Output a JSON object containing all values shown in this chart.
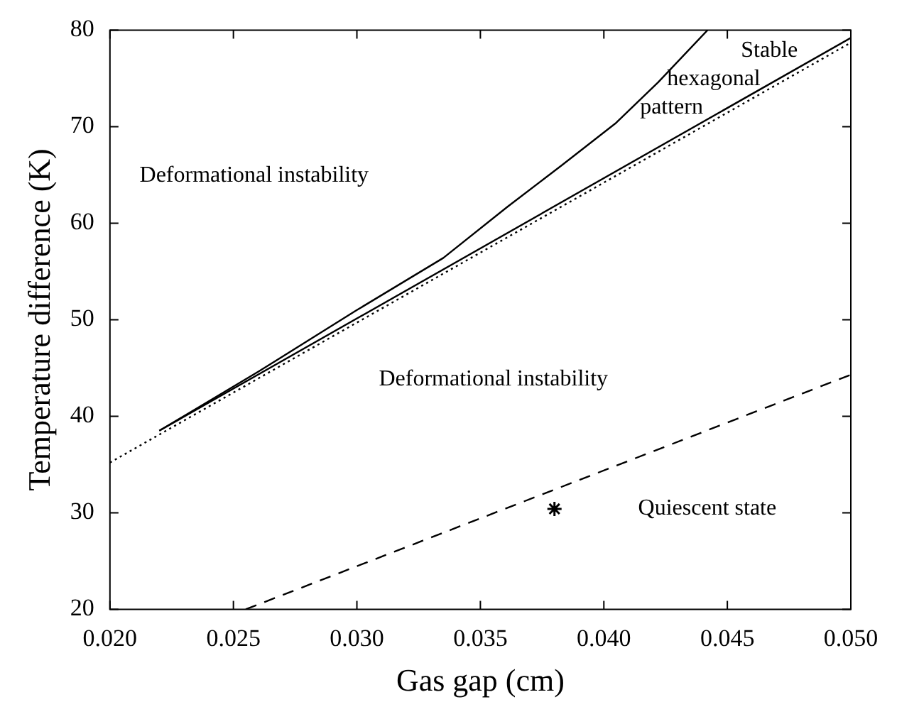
{
  "chart_data": {
    "type": "line",
    "xlabel": "Gas gap (cm)",
    "ylabel": "Temperature difference (K)",
    "xlim": [
      0.02,
      0.05
    ],
    "xticks": [
      {
        "value": 0.02,
        "label": "0.020"
      },
      {
        "value": 0.025,
        "label": "0.025"
      },
      {
        "value": 0.03,
        "label": "0.030"
      },
      {
        "value": 0.035,
        "label": "0.035"
      },
      {
        "value": 0.04,
        "label": "0.040"
      },
      {
        "value": 0.045,
        "label": "0.045"
      },
      {
        "value": 0.05,
        "label": "0.050"
      }
    ],
    "ylim": [
      20,
      80
    ],
    "yticks": [
      20,
      30,
      40,
      50,
      60,
      70,
      80
    ],
    "marker": "none",
    "series": [
      {
        "type": "line",
        "color": "#000000",
        "line_style": "solid",
        "x": [
          0.022,
          0.026,
          0.03,
          0.0335,
          0.0361,
          0.0383,
          0.0405,
          0.0422,
          0.0442
        ],
        "values": [
          38.5,
          44.6,
          51,
          56.4,
          61.7,
          66,
          70.4,
          74.6,
          80
        ]
      },
      {
        "type": "line",
        "color": "#000000",
        "line_style": "solid",
        "x": [
          0.022,
          0.05
        ],
        "values": [
          38.5,
          79.2
        ]
      },
      {
        "type": "line",
        "color": "#000000",
        "line_style": "dotted",
        "x": [
          0.02,
          0.05
        ],
        "values": [
          35.2,
          78.7
        ]
      },
      {
        "type": "line",
        "color": "#000000",
        "line_style": "dashed",
        "x": [
          0.0255,
          0.05
        ],
        "values": [
          20,
          44.3
        ]
      },
      {
        "type": "scatter",
        "color": "#000000",
        "marker": "cross",
        "x": [
          0.038
        ],
        "values": [
          30.4
        ]
      }
    ],
    "annotations": [
      "Deformational instability",
      "Deformational instability",
      "Quiescent state",
      "Stable hexagonal pattern"
    ]
  }
}
